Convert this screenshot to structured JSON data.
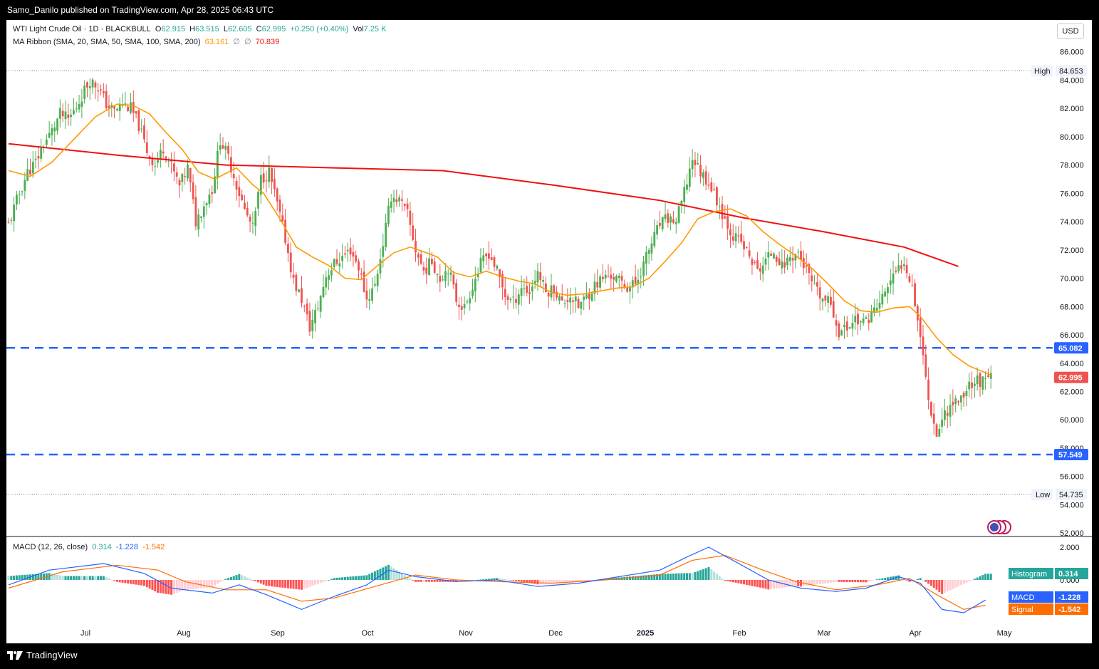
{
  "header": {
    "publisher_line": "Samo_Danilo published on TradingView.com, Apr 28, 2025 06:43 UTC"
  },
  "footer": {
    "brand": "TradingView"
  },
  "currency_button": "USD",
  "legend_main": {
    "symbol": "WTI Light Crude Oil · 1D · BLACKBULL",
    "o_label": "O",
    "o_value": "62.915",
    "h_label": "H",
    "h_value": "63.515",
    "l_label": "L",
    "l_value": "62.605",
    "c_label": "C",
    "c_value": "62.995",
    "change": "+0.250 (+0.40%)",
    "vol_label": "Vol",
    "vol_value": "7.25 K"
  },
  "legend_ma": {
    "name": "MA Ribbon (SMA, 20, SMA, 50, SMA, 100, SMA, 200)",
    "val1": "63.161",
    "sep1": "∅",
    "sep2": "∅",
    "val2": "70.839"
  },
  "legend_macd": {
    "name": "MACD (12, 26, close)",
    "hist": "0.314",
    "macd": "-1.228",
    "signal": "-1.542"
  },
  "colors": {
    "up": "#4caf50",
    "down": "#ef5350",
    "sma20": "#ff9800",
    "sma200": "#f01010",
    "level": "#2962ff",
    "macd": "#2962ff",
    "signal": "#ff6d00",
    "hist_up_strong": "#26a69a",
    "hist_up_weak": "#b2dfdb",
    "hist_down_strong": "#ff5252",
    "hist_down_weak": "#ffcdd2",
    "tag_level": "#2962ff",
    "tag_price": "#ef5350",
    "tag_hist": "#26a69a"
  },
  "chart_data": {
    "type": "candlestick",
    "price_axis": {
      "ticks": [
        "86.000",
        "84.000",
        "82.000",
        "80.000",
        "78.000",
        "76.000",
        "74.000",
        "72.000",
        "70.000",
        "68.000",
        "66.000",
        "64.000",
        "62.000",
        "60.000",
        "58.000",
        "56.000",
        "54.000",
        "52.000"
      ],
      "range": [
        52,
        86
      ]
    },
    "time_axis": {
      "labels": [
        "Jul",
        "Aug",
        "Sep",
        "Oct",
        "Nov",
        "Dec",
        "2025",
        "Feb",
        "Mar",
        "Apr",
        "May"
      ]
    },
    "markers": {
      "high_label": "High",
      "high_value": "84.653",
      "low_label": "Low",
      "low_value": "54.735",
      "resistance": "65.082",
      "support": "57.549",
      "last_price": "62.995"
    },
    "close_path": [
      [
        0,
        73.8
      ],
      [
        3,
        75.5
      ],
      [
        7,
        77.5
      ],
      [
        10,
        78.2
      ],
      [
        13,
        79.5
      ],
      [
        16,
        80.4
      ],
      [
        19,
        81.6
      ],
      [
        22,
        81.2
      ],
      [
        25,
        82.1
      ],
      [
        28,
        83.3
      ],
      [
        30,
        84.0
      ],
      [
        33,
        83.5
      ],
      [
        36,
        82.3
      ],
      [
        39,
        81.8
      ],
      [
        42,
        82.3
      ],
      [
        45,
        82.0
      ],
      [
        48,
        80.8
      ],
      [
        51,
        79.0
      ],
      [
        54,
        78.0
      ],
      [
        57,
        79.2
      ],
      [
        60,
        77.9
      ],
      [
        63,
        76.5
      ],
      [
        66,
        77.8
      ],
      [
        69,
        74.0
      ],
      [
        72,
        75.2
      ],
      [
        75,
        76.3
      ],
      [
        78,
        79.8
      ],
      [
        81,
        78.5
      ],
      [
        84,
        76.6
      ],
      [
        87,
        74.8
      ],
      [
        90,
        73.5
      ],
      [
        93,
        77.0
      ],
      [
        96,
        77.5
      ],
      [
        99,
        75.2
      ],
      [
        102,
        72.8
      ],
      [
        105,
        69.8
      ],
      [
        108,
        68.5
      ],
      [
        111,
        66.5
      ],
      [
        114,
        68.0
      ],
      [
        117,
        70.2
      ],
      [
        120,
        71.0
      ],
      [
        123,
        71.5
      ],
      [
        126,
        72.0
      ],
      [
        129,
        70.8
      ],
      [
        132,
        68.5
      ],
      [
        135,
        69.5
      ],
      [
        138,
        72.5
      ],
      [
        141,
        75.8
      ],
      [
        144,
        75.5
      ],
      [
        147,
        74.5
      ],
      [
        150,
        72.0
      ],
      [
        153,
        70.5
      ],
      [
        156,
        71.2
      ],
      [
        159,
        70.0
      ],
      [
        162,
        70.8
      ],
      [
        165,
        68.5
      ],
      [
        168,
        67.9
      ],
      [
        171,
        69.5
      ],
      [
        174,
        71.0
      ],
      [
        177,
        71.8
      ],
      [
        180,
        70.5
      ],
      [
        183,
        68.8
      ],
      [
        186,
        68.3
      ],
      [
        189,
        69.4
      ],
      [
        192,
        69.0
      ],
      [
        195,
        70.5
      ],
      [
        198,
        69.0
      ],
      [
        201,
        69.3
      ],
      [
        204,
        68.2
      ],
      [
        207,
        68.8
      ],
      [
        210,
        68.0
      ],
      [
        213,
        68.7
      ],
      [
        216,
        69.5
      ],
      [
        219,
        70.0
      ],
      [
        222,
        70.2
      ],
      [
        225,
        69.8
      ],
      [
        228,
        69.4
      ],
      [
        231,
        69.6
      ],
      [
        234,
        71.0
      ],
      [
        237,
        72.5
      ],
      [
        240,
        73.8
      ],
      [
        243,
        74.2
      ],
      [
        246,
        74.0
      ],
      [
        249,
        76.0
      ],
      [
        252,
        78.5
      ],
      [
        255,
        77.5
      ],
      [
        258,
        76.8
      ],
      [
        261,
        75.5
      ],
      [
        264,
        74.2
      ],
      [
        267,
        73.0
      ],
      [
        270,
        72.5
      ],
      [
        273,
        71.5
      ],
      [
        276,
        70.5
      ],
      [
        279,
        71.2
      ],
      [
        282,
        72.0
      ],
      [
        285,
        70.8
      ],
      [
        288,
        71.5
      ],
      [
        291,
        71.8
      ],
      [
        294,
        70.5
      ],
      [
        297,
        69.2
      ],
      [
        300,
        68.5
      ],
      [
        303,
        68.2
      ],
      [
        306,
        66.2
      ],
      [
        309,
        66.5
      ],
      [
        312,
        67.2
      ],
      [
        315,
        66.8
      ],
      [
        318,
        67.5
      ],
      [
        321,
        68.2
      ],
      [
        324,
        69.5
      ],
      [
        327,
        70.3
      ],
      [
        330,
        71.3
      ],
      [
        333,
        69.5
      ],
      [
        336,
        66.0
      ],
      [
        339,
        61.5
      ],
      [
        342,
        59.0
      ],
      [
        345,
        60.5
      ],
      [
        348,
        61.2
      ],
      [
        351,
        61.5
      ],
      [
        354,
        62.5
      ],
      [
        357,
        62.8
      ],
      [
        360,
        62.6
      ],
      [
        362,
        62.995
      ]
    ],
    "sma20_path": [
      [
        0,
        77.6
      ],
      [
        8,
        77.2
      ],
      [
        16,
        78.2
      ],
      [
        24,
        79.8
      ],
      [
        32,
        81.4
      ],
      [
        40,
        82.3
      ],
      [
        46,
        82.2
      ],
      [
        52,
        81.6
      ],
      [
        58,
        80.3
      ],
      [
        64,
        79.1
      ],
      [
        70,
        77.5
      ],
      [
        76,
        77.0
      ],
      [
        80,
        77.4
      ],
      [
        84,
        77.8
      ],
      [
        90,
        76.6
      ],
      [
        94,
        76.0
      ],
      [
        100,
        74.2
      ],
      [
        106,
        72.2
      ],
      [
        112,
        71.5
      ],
      [
        118,
        70.9
      ],
      [
        124,
        70.0
      ],
      [
        130,
        69.9
      ],
      [
        136,
        70.9
      ],
      [
        142,
        71.8
      ],
      [
        148,
        72.2
      ],
      [
        154,
        71.8
      ],
      [
        158,
        71.5
      ],
      [
        164,
        70.4
      ],
      [
        170,
        70.1
      ],
      [
        176,
        70.5
      ],
      [
        182,
        70.1
      ],
      [
        188,
        69.8
      ],
      [
        194,
        69.6
      ],
      [
        200,
        69.0
      ],
      [
        206,
        68.8
      ],
      [
        212,
        68.9
      ],
      [
        218,
        69.1
      ],
      [
        224,
        69.3
      ],
      [
        230,
        69.4
      ],
      [
        236,
        70.0
      ],
      [
        242,
        71.2
      ],
      [
        248,
        72.5
      ],
      [
        254,
        74.2
      ],
      [
        260,
        74.7
      ],
      [
        266,
        74.9
      ],
      [
        272,
        74.4
      ],
      [
        278,
        73.3
      ],
      [
        284,
        72.4
      ],
      [
        290,
        71.6
      ],
      [
        296,
        70.7
      ],
      [
        302,
        69.6
      ],
      [
        308,
        68.4
      ],
      [
        314,
        67.7
      ],
      [
        320,
        67.6
      ],
      [
        326,
        67.9
      ],
      [
        332,
        68.0
      ],
      [
        336,
        67.3
      ],
      [
        342,
        65.8
      ],
      [
        348,
        64.6
      ],
      [
        354,
        63.8
      ],
      [
        362,
        63.161
      ]
    ],
    "sma200_path": [
      [
        0,
        79.5
      ],
      [
        40,
        78.7
      ],
      [
        80,
        78.0
      ],
      [
        120,
        77.8
      ],
      [
        160,
        77.6
      ],
      [
        200,
        76.6
      ],
      [
        240,
        75.5
      ],
      [
        270,
        74.3
      ],
      [
        300,
        73.3
      ],
      [
        330,
        72.2
      ],
      [
        350,
        70.839
      ]
    ],
    "macd_path": [
      [
        0,
        -0.3
      ],
      [
        15,
        0.6
      ],
      [
        35,
        1.0
      ],
      [
        50,
        0.4
      ],
      [
        60,
        -0.5
      ],
      [
        75,
        -0.8
      ],
      [
        85,
        -0.3
      ],
      [
        95,
        -0.9
      ],
      [
        108,
        -1.8
      ],
      [
        120,
        -1.0
      ],
      [
        132,
        -0.3
      ],
      [
        140,
        0.6
      ],
      [
        150,
        0.2
      ],
      [
        165,
        -0.1
      ],
      [
        180,
        0.0
      ],
      [
        195,
        -0.4
      ],
      [
        210,
        -0.2
      ],
      [
        225,
        0.2
      ],
      [
        240,
        0.6
      ],
      [
        250,
        1.4
      ],
      [
        258,
        2.0
      ],
      [
        268,
        1.1
      ],
      [
        280,
        0.0
      ],
      [
        292,
        -0.5
      ],
      [
        305,
        -0.7
      ],
      [
        316,
        -0.5
      ],
      [
        328,
        0.2
      ],
      [
        336,
        -0.2
      ],
      [
        344,
        -1.8
      ],
      [
        352,
        -2.0
      ],
      [
        360,
        -1.228
      ]
    ],
    "signal_path": [
      [
        0,
        -0.5
      ],
      [
        20,
        0.5
      ],
      [
        40,
        0.9
      ],
      [
        55,
        0.6
      ],
      [
        65,
        -0.1
      ],
      [
        80,
        -0.6
      ],
      [
        95,
        -0.6
      ],
      [
        108,
        -1.3
      ],
      [
        120,
        -1.1
      ],
      [
        135,
        -0.4
      ],
      [
        150,
        0.3
      ],
      [
        165,
        0.0
      ],
      [
        180,
        -0.1
      ],
      [
        200,
        -0.2
      ],
      [
        220,
        0.0
      ],
      [
        240,
        0.3
      ],
      [
        252,
        1.2
      ],
      [
        264,
        1.5
      ],
      [
        278,
        0.6
      ],
      [
        290,
        -0.1
      ],
      [
        305,
        -0.6
      ],
      [
        320,
        -0.3
      ],
      [
        332,
        0.1
      ],
      [
        342,
        -0.9
      ],
      [
        352,
        -1.8
      ],
      [
        360,
        -1.542
      ]
    ],
    "macd_axis": {
      "ticks": [
        "2.000",
        "0.000"
      ],
      "range": [
        -2.4,
        2.4
      ]
    },
    "macd_tags": {
      "hist_label": "Histogram",
      "hist_value": "0.314",
      "macd_label": "MACD",
      "macd_value": "-1.228",
      "signal_label": "Signal",
      "signal_value": "-1.542"
    },
    "grid": false,
    "legend_position": "top-left"
  }
}
